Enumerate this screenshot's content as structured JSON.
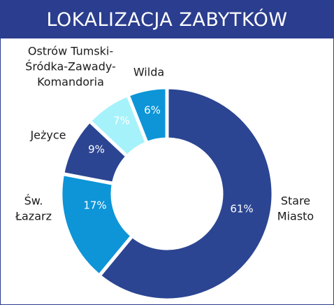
{
  "title": "LOKALIZACJA ZABYTKÓW",
  "chart_data": {
    "type": "pie",
    "title": "LOKALIZACJA ZABYTKÓW",
    "donut": true,
    "categories": [
      "Stare Miasto",
      "Św. Łazarz",
      "Jeżyce",
      "Ostrów Tumski-Śródka-Zawady-Komandoria",
      "Wilda"
    ],
    "values": [
      61,
      17,
      9,
      7,
      6
    ],
    "data_labels": [
      "61%",
      "17%",
      "9%",
      "7%",
      "6%"
    ],
    "label_lines": [
      [
        "Stare",
        "Miasto"
      ],
      [
        "Św.",
        "Łazarz"
      ],
      [
        "Jeżyce"
      ],
      [
        "Ostrów Tumski-",
        "Śródka-Zawady-",
        "Komandoria"
      ],
      [
        "Wilda"
      ]
    ],
    "colors": [
      "#2b4592",
      "#0d95d8",
      "#2b4592",
      "#a6f2fb",
      "#0d95d8"
    ],
    "label_colors": [
      "#ffffff",
      "#ffffff",
      "#ffffff",
      "#ffffff",
      "#ffffff"
    ],
    "title_bar_color": "#2b3d8e",
    "legend": "none"
  }
}
